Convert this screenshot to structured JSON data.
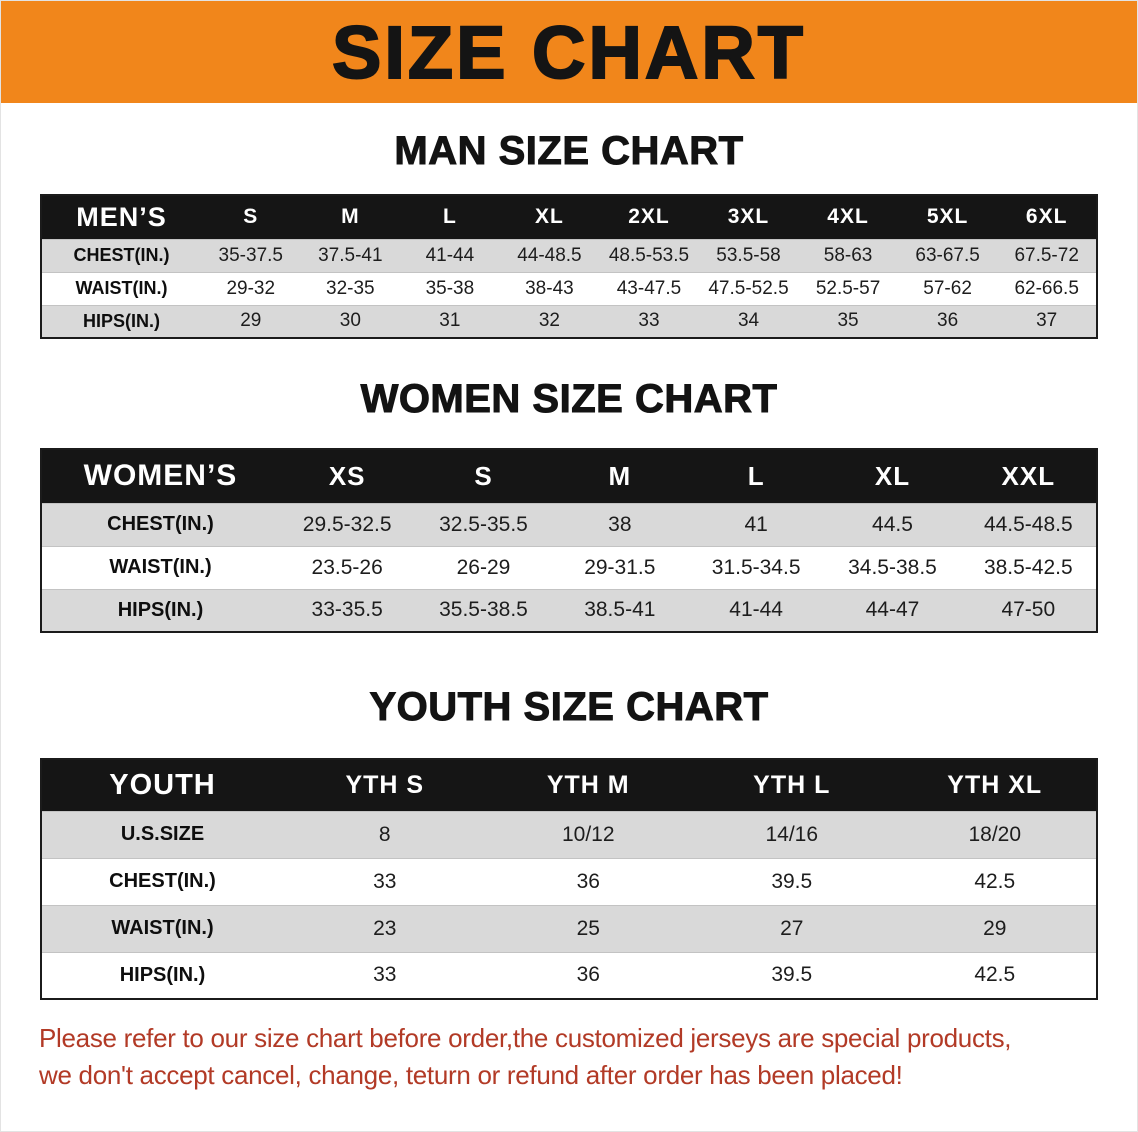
{
  "banner": {
    "title": "SIZE CHART"
  },
  "colors": {
    "banner_bg": "#F1861B",
    "header_bg": "#151515",
    "row_stripe": "#D9D9D9",
    "footer_red": "#B23A26"
  },
  "chart_data": [
    {
      "type": "table",
      "title": "MAN SIZE CHART",
      "header_label": "MEN’S",
      "columns": [
        "S",
        "M",
        "L",
        "XL",
        "2XL",
        "3XL",
        "4XL",
        "5XL",
        "6XL"
      ],
      "rows": [
        {
          "label": "CHEST(IN.)",
          "values": [
            "35-37.5",
            "37.5-41",
            "41-44",
            "44-48.5",
            "48.5-53.5",
            "53.5-58",
            "58-63",
            "63-67.5",
            "67.5-72"
          ]
        },
        {
          "label": "WAIST(IN.)",
          "values": [
            "29-32",
            "32-35",
            "35-38",
            "38-43",
            "43-47.5",
            "47.5-52.5",
            "52.5-57",
            "57-62",
            "62-66.5"
          ]
        },
        {
          "label": "HIPS(IN.)",
          "values": [
            "29",
            "30",
            "31",
            "32",
            "33",
            "34",
            "35",
            "36",
            "37"
          ]
        }
      ]
    },
    {
      "type": "table",
      "title": "WOMEN SIZE CHART",
      "header_label": "WOMEN’S",
      "columns": [
        "XS",
        "S",
        "M",
        "L",
        "XL",
        "XXL"
      ],
      "rows": [
        {
          "label": "CHEST(IN.)",
          "values": [
            "29.5-32.5",
            "32.5-35.5",
            "38",
            "41",
            "44.5",
            "44.5-48.5"
          ]
        },
        {
          "label": "WAIST(IN.)",
          "values": [
            "23.5-26",
            "26-29",
            "29-31.5",
            "31.5-34.5",
            "34.5-38.5",
            "38.5-42.5"
          ]
        },
        {
          "label": "HIPS(IN.)",
          "values": [
            "33-35.5",
            "35.5-38.5",
            "38.5-41",
            "41-44",
            "44-47",
            "47-50"
          ]
        }
      ]
    },
    {
      "type": "table",
      "title": "YOUTH SIZE CHART",
      "header_label": "YOUTH",
      "columns": [
        "YTH S",
        "YTH M",
        "YTH L",
        "YTH XL"
      ],
      "rows": [
        {
          "label": "U.S.SIZE",
          "values": [
            "8",
            "10/12",
            "14/16",
            "18/20"
          ]
        },
        {
          "label": "CHEST(IN.)",
          "values": [
            "33",
            "36",
            "39.5",
            "42.5"
          ]
        },
        {
          "label": "WAIST(IN.)",
          "values": [
            "23",
            "25",
            "27",
            "29"
          ]
        },
        {
          "label": "HIPS(IN.)",
          "values": [
            "33",
            "36",
            "39.5",
            "42.5"
          ]
        }
      ]
    }
  ],
  "footer": {
    "line1": "Please refer to our size chart before order,the customized jerseys are special products,",
    "line2": "we don't accept cancel, change, teturn or refund after order has been placed!"
  }
}
